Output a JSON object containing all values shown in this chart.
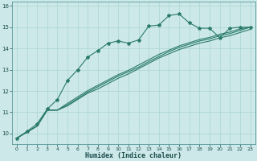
{
  "xlabel": "Humidex (Indice chaleur)",
  "background_color": "#cce8e8",
  "grid_color": "#aad4d4",
  "line_color": "#2a7a6a",
  "xlim": [
    -0.5,
    23.5
  ],
  "ylim": [
    9.5,
    16.2
  ],
  "yticks": [
    10,
    11,
    12,
    13,
    14,
    15,
    16
  ],
  "xticks": [
    0,
    1,
    2,
    3,
    4,
    5,
    6,
    7,
    8,
    9,
    10,
    11,
    12,
    13,
    14,
    15,
    16,
    17,
    18,
    19,
    20,
    21,
    22,
    23
  ],
  "line1_x": [
    0,
    1,
    2,
    3,
    4,
    5,
    6,
    7,
    8,
    9,
    10,
    11,
    12,
    13,
    14,
    15,
    16,
    17,
    18,
    19,
    20,
    21,
    22,
    23
  ],
  "line1_y": [
    9.78,
    10.1,
    10.45,
    11.15,
    11.6,
    12.5,
    13.0,
    13.6,
    13.9,
    14.25,
    14.35,
    14.25,
    14.4,
    15.05,
    15.1,
    15.55,
    15.62,
    15.2,
    14.95,
    14.95,
    14.5,
    14.95,
    15.0,
    15.0
  ],
  "line2_x": [
    0,
    2,
    3,
    4,
    5,
    6,
    7,
    8,
    9,
    10,
    11,
    12,
    13,
    14,
    15,
    16,
    17,
    18,
    19,
    20,
    21,
    22,
    23
  ],
  "line2_y": [
    9.78,
    10.35,
    11.1,
    11.1,
    11.3,
    11.6,
    11.9,
    12.1,
    12.35,
    12.6,
    12.8,
    13.05,
    13.3,
    13.55,
    13.75,
    13.95,
    14.1,
    14.25,
    14.35,
    14.5,
    14.6,
    14.75,
    14.9
  ],
  "line3_x": [
    0,
    2,
    3,
    4,
    5,
    6,
    7,
    8,
    9,
    10,
    11,
    12,
    13,
    14,
    15,
    16,
    17,
    18,
    19,
    20,
    21,
    22,
    23
  ],
  "line3_y": [
    9.78,
    10.35,
    11.1,
    11.1,
    11.35,
    11.65,
    11.95,
    12.2,
    12.45,
    12.7,
    12.9,
    13.12,
    13.38,
    13.62,
    13.85,
    14.05,
    14.2,
    14.35,
    14.45,
    14.6,
    14.7,
    14.85,
    15.0
  ],
  "line4_x": [
    0,
    2,
    3,
    4,
    5,
    6,
    7,
    8,
    9,
    10,
    11,
    12,
    13,
    14,
    15,
    16,
    17,
    18,
    19,
    20,
    21,
    22,
    23
  ],
  "line4_y": [
    9.78,
    10.35,
    11.1,
    11.1,
    11.42,
    11.72,
    12.02,
    12.27,
    12.52,
    12.77,
    12.97,
    13.22,
    13.47,
    13.72,
    13.92,
    14.12,
    14.27,
    14.42,
    14.52,
    14.67,
    14.77,
    14.92,
    15.0
  ]
}
